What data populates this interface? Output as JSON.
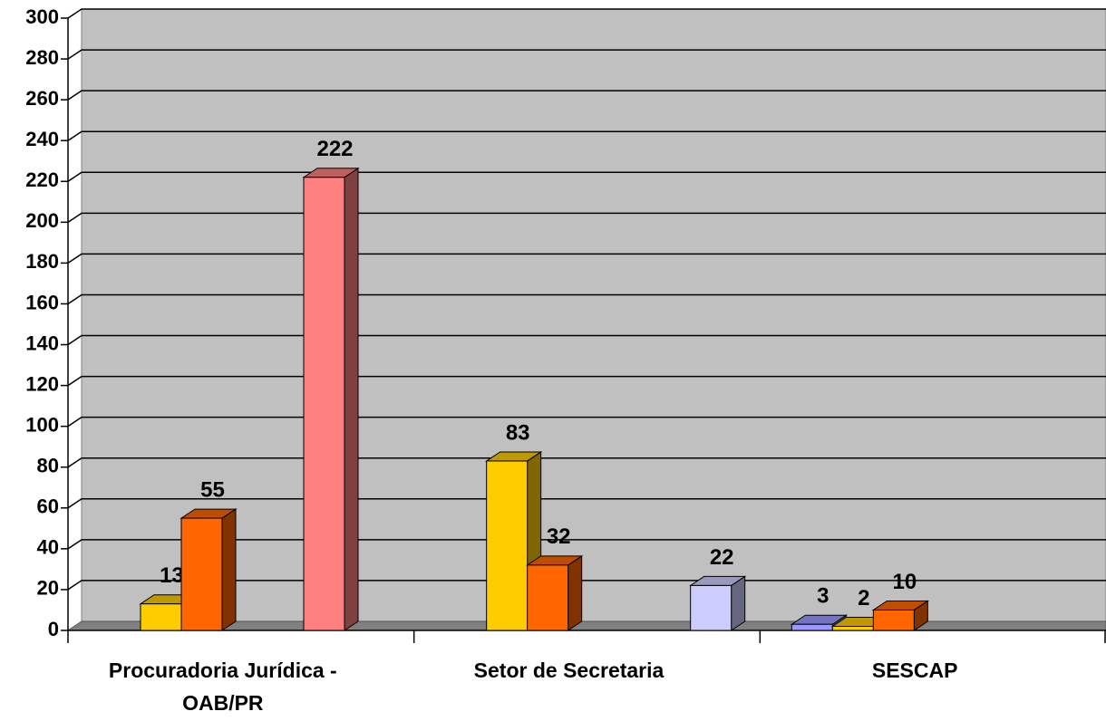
{
  "chart_data": {
    "type": "bar3d",
    "categories": [
      "Procuradoria Jurídica - OAB/PR",
      "Setor de Secretaria",
      "SESCAP"
    ],
    "series": [
      {
        "color": "#9999ff",
        "values": [
          null,
          null,
          3
        ]
      },
      {
        "color": "#ffcc00",
        "values": [
          13,
          83,
          2
        ]
      },
      {
        "color": "#ff6600",
        "values": [
          55,
          32,
          10
        ]
      },
      {
        "color": "#ff8080",
        "values": [
          222,
          null,
          null
        ]
      },
      {
        "color": "#ccccff",
        "values": [
          null,
          22,
          null
        ]
      }
    ],
    "ylim": [
      0,
      300
    ],
    "yticks": [
      0,
      20,
      40,
      60,
      80,
      100,
      120,
      140,
      160,
      180,
      200,
      220,
      240,
      260,
      280,
      300
    ],
    "grid": true
  }
}
